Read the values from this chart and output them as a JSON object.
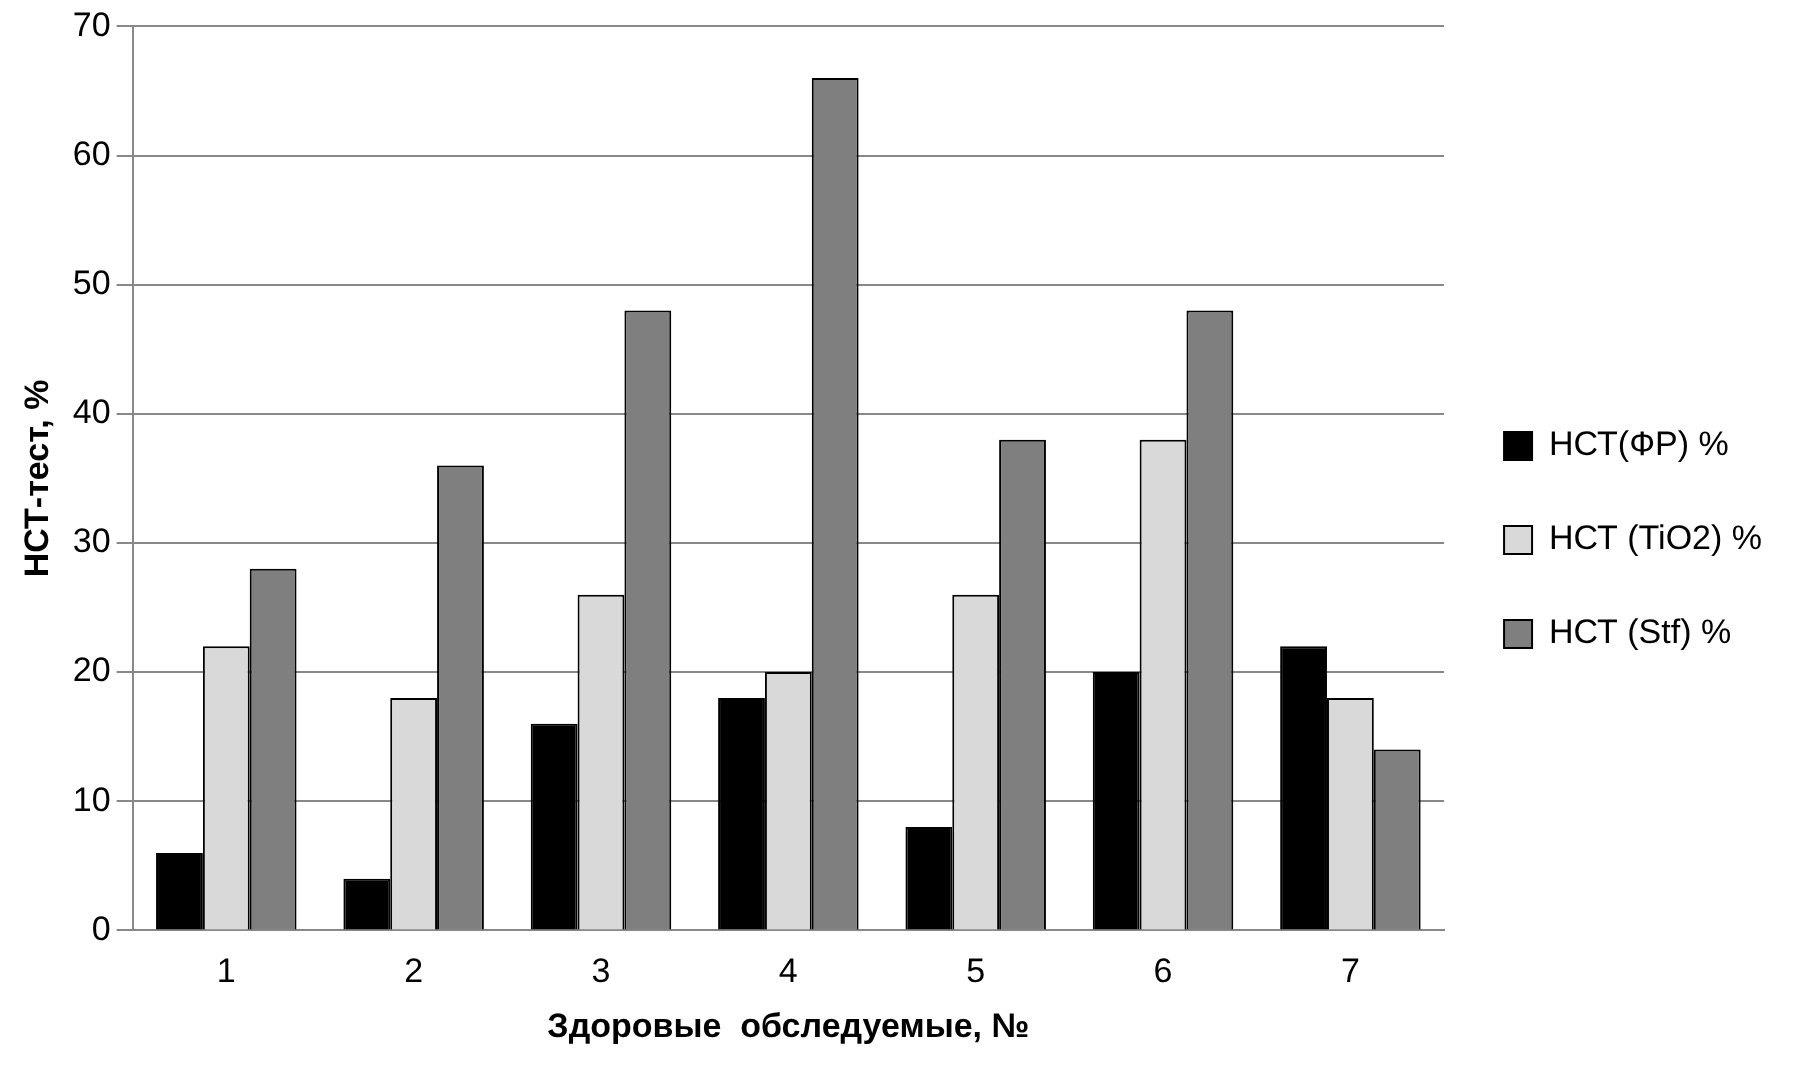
{
  "chart_data": {
    "type": "bar",
    "xlabel": "Здоровые  обследуемые, №",
    "ylabel": "НСТ-тест, %",
    "categories": [
      "1",
      "2",
      "3",
      "4",
      "5",
      "6",
      "7"
    ],
    "series": [
      {
        "name": "НСТ(ФР) %",
        "color": "#000000",
        "values": [
          6,
          4,
          16,
          18,
          8,
          20,
          22
        ]
      },
      {
        "name": "НСТ (TiO2) %",
        "color": "#d9d9d9",
        "values": [
          22,
          18,
          26,
          20,
          26,
          38,
          18
        ]
      },
      {
        "name": "НСТ (Stf) %",
        "color": "#7f7f7f",
        "values": [
          28,
          36,
          48,
          66,
          38,
          48,
          14
        ]
      }
    ],
    "ylim": [
      0,
      70
    ],
    "yticks": [
      0,
      10,
      20,
      30,
      40,
      50,
      60,
      70
    ],
    "grid": "y",
    "legend": "right"
  }
}
